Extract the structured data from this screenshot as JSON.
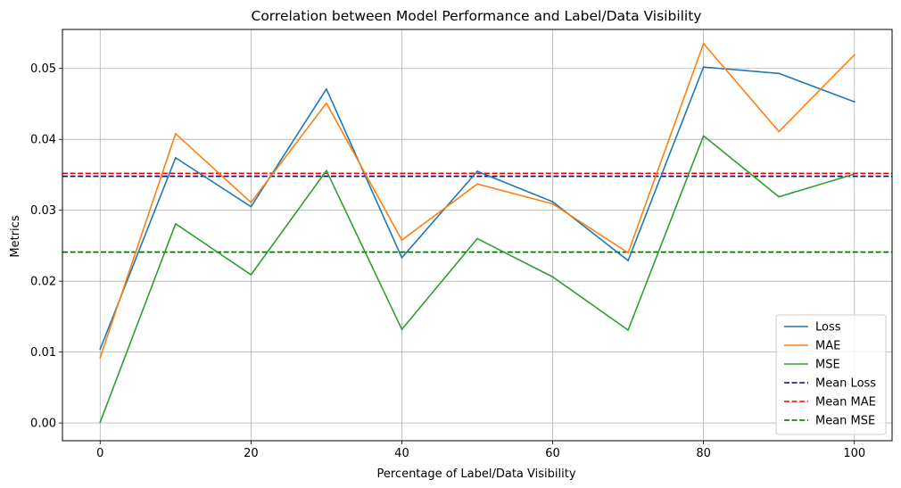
{
  "chart_data": {
    "type": "line",
    "title": "Correlation between Model Performance and Label/Data Visibility",
    "xlabel": "Percentage of Label/Data Visibility",
    "ylabel": "Metrics",
    "xlim": [
      -5,
      105
    ],
    "ylim": [
      -0.0025,
      0.0555
    ],
    "xticks": [
      0,
      20,
      40,
      60,
      80,
      100
    ],
    "xtick_labels": [
      "0",
      "20",
      "40",
      "60",
      "80",
      "100"
    ],
    "yticks": [
      0.0,
      0.01,
      0.02,
      0.03,
      0.04,
      0.05
    ],
    "ytick_labels": [
      "0.00",
      "0.01",
      "0.02",
      "0.03",
      "0.04",
      "0.05"
    ],
    "grid": true,
    "legend_position": "lower-right",
    "x": [
      0,
      10,
      20,
      30,
      40,
      50,
      60,
      70,
      80,
      90,
      100
    ],
    "series": [
      {
        "name": "Loss",
        "style": "solid",
        "color": "#1f77b4",
        "values": [
          0.0104,
          0.0374,
          0.0305,
          0.0471,
          0.0233,
          0.0355,
          0.0312,
          0.0229,
          0.0502,
          0.0493,
          0.0453
        ]
      },
      {
        "name": "MAE",
        "style": "solid",
        "color": "#ff7f0e",
        "values": [
          0.0092,
          0.0408,
          0.0311,
          0.0451,
          0.0258,
          0.0337,
          0.0309,
          0.024,
          0.0535,
          0.0411,
          0.0519
        ]
      },
      {
        "name": "MSE",
        "style": "solid",
        "color": "#2ca02c",
        "values": [
          0.0001,
          0.0281,
          0.0209,
          0.0356,
          0.0132,
          0.026,
          0.0206,
          0.0131,
          0.0405,
          0.0319,
          0.0351
        ]
      },
      {
        "name": "Mean Loss",
        "style": "dashed",
        "color": "#00008b",
        "constant": 0.0348
      },
      {
        "name": "Mean MAE",
        "style": "dashed",
        "color": "#ff0000",
        "constant": 0.0352
      },
      {
        "name": "Mean MSE",
        "style": "dashed",
        "color": "#006400",
        "constant": 0.0241
      }
    ]
  }
}
